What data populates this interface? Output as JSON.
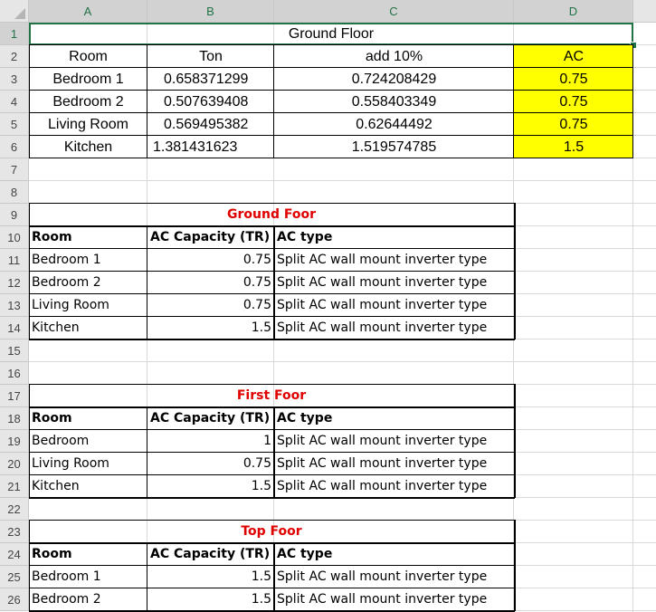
{
  "columns": [
    "A",
    "B",
    "C",
    "D"
  ],
  "rows": [
    "1",
    "2",
    "3",
    "4",
    "5",
    "6",
    "7",
    "8",
    "9",
    "10",
    "11",
    "12",
    "13",
    "14",
    "15",
    "16",
    "17",
    "18",
    "19",
    "20",
    "21",
    "22",
    "23",
    "24",
    "25",
    "26"
  ],
  "title": "Ground Floor",
  "summary": {
    "headers": [
      "Room",
      "Ton",
      "add 10%",
      "AC"
    ],
    "rows": [
      {
        "room": "Bedroom 1",
        "ton": "0.658371299",
        "add": "0.724208429",
        "ac": "0.75"
      },
      {
        "room": "Bedroom 2",
        "ton": "0.507639408",
        "add": "0.558403349",
        "ac": "0.75"
      },
      {
        "room": "Living Room",
        "ton": "0.569495382",
        "add": "0.62644492",
        "ac": "0.75"
      },
      {
        "room": "Kitchen",
        "ton": "1.381431623",
        "add": "1.519574785",
        "ac": "1.5"
      }
    ],
    "highlight_color": "#ffff00"
  },
  "floors": [
    {
      "title": "Ground Foor",
      "headers": [
        "Room",
        "AC Capacity (TR)",
        "AC type"
      ],
      "rows": [
        {
          "room": "Bedroom 1",
          "cap": "0.75",
          "type": "Split AC wall mount inverter type"
        },
        {
          "room": "Bedroom 2",
          "cap": "0.75",
          "type": "Split AC wall mount inverter type"
        },
        {
          "room": "Living Room",
          "cap": "0.75",
          "type": "Split AC wall mount inverter type"
        },
        {
          "room": "Kitchen",
          "cap": "1.5",
          "type": "Split AC wall mount inverter type"
        }
      ]
    },
    {
      "title": "First Foor",
      "headers": [
        "Room",
        "AC Capacity (TR)",
        "AC type"
      ],
      "rows": [
        {
          "room": "Bedroom",
          "cap": "1",
          "type": "Split AC wall mount inverter type"
        },
        {
          "room": "Living Room",
          "cap": "0.75",
          "type": "Split AC wall mount inverter type"
        },
        {
          "room": "Kitchen",
          "cap": "1.5",
          "type": "Split AC wall mount inverter type"
        }
      ]
    },
    {
      "title": "Top Foor",
      "headers": [
        "Room",
        "AC Capacity (TR)",
        "AC type"
      ],
      "rows": [
        {
          "room": "Bedroom 1",
          "cap": "1.5",
          "type": "Split AC wall mount inverter type"
        },
        {
          "room": "Bedroom 2",
          "cap": "1.5",
          "type": "Split AC wall mount inverter type"
        }
      ]
    }
  ],
  "colors": {
    "accent": "#217346",
    "title_red": "#e00000"
  }
}
